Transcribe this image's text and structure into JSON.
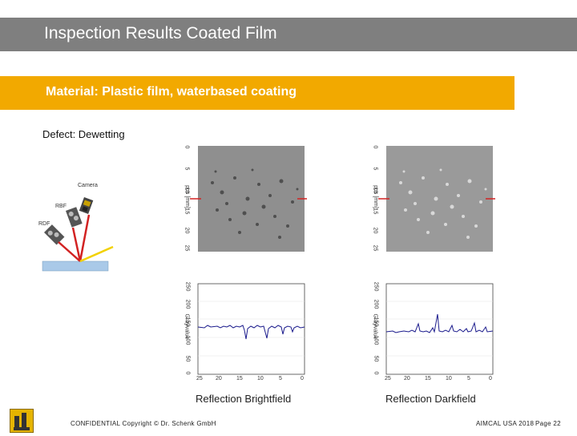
{
  "header": {
    "title": "Inspection Results Coated Film"
  },
  "material": {
    "label": "Material: Plastic film, waterbased coating"
  },
  "defect": {
    "label": "Defect: Dewetting"
  },
  "diagram": {
    "camera_label": "Camera",
    "rbf_label": "RBF",
    "rdf_label": "RDF"
  },
  "brightfield_image": {
    "y_ticks": [
      "0",
      "5",
      "10",
      "15",
      "20",
      "25"
    ],
    "y_label": "pos [mm]"
  },
  "darkfield_image": {
    "y_ticks": [
      "0",
      "5",
      "10",
      "15",
      "20",
      "25"
    ],
    "y_label": "pos [mm]"
  },
  "brightfield_profile": {
    "y_ticks": [
      "250",
      "200",
      "150",
      "100",
      "50",
      "0"
    ],
    "x_ticks": [
      "25",
      "20",
      "15",
      "10",
      "5",
      "0"
    ],
    "y_label": "Grayvalue"
  },
  "darkfield_profile": {
    "y_ticks": [
      "250",
      "200",
      "150",
      "100",
      "50",
      "0"
    ],
    "x_ticks": [
      "25",
      "20",
      "15",
      "10",
      "5",
      "0"
    ],
    "y_label": "Grayvalue"
  },
  "captions": {
    "brightfield": "Reflection Brightfield",
    "darkfield": "Reflection Darkfield"
  },
  "footer": {
    "confidential": "CONFIDENTIAL  Copyright © Dr. Schenk GmbH",
    "event": "AIMCAL USA 2018",
    "page": "Page 22"
  },
  "colors": {
    "title_bar": "#7f7f7f",
    "material_bar": "#f2a900",
    "profile_line": "#1a1a8c",
    "marker": "#d22222"
  }
}
